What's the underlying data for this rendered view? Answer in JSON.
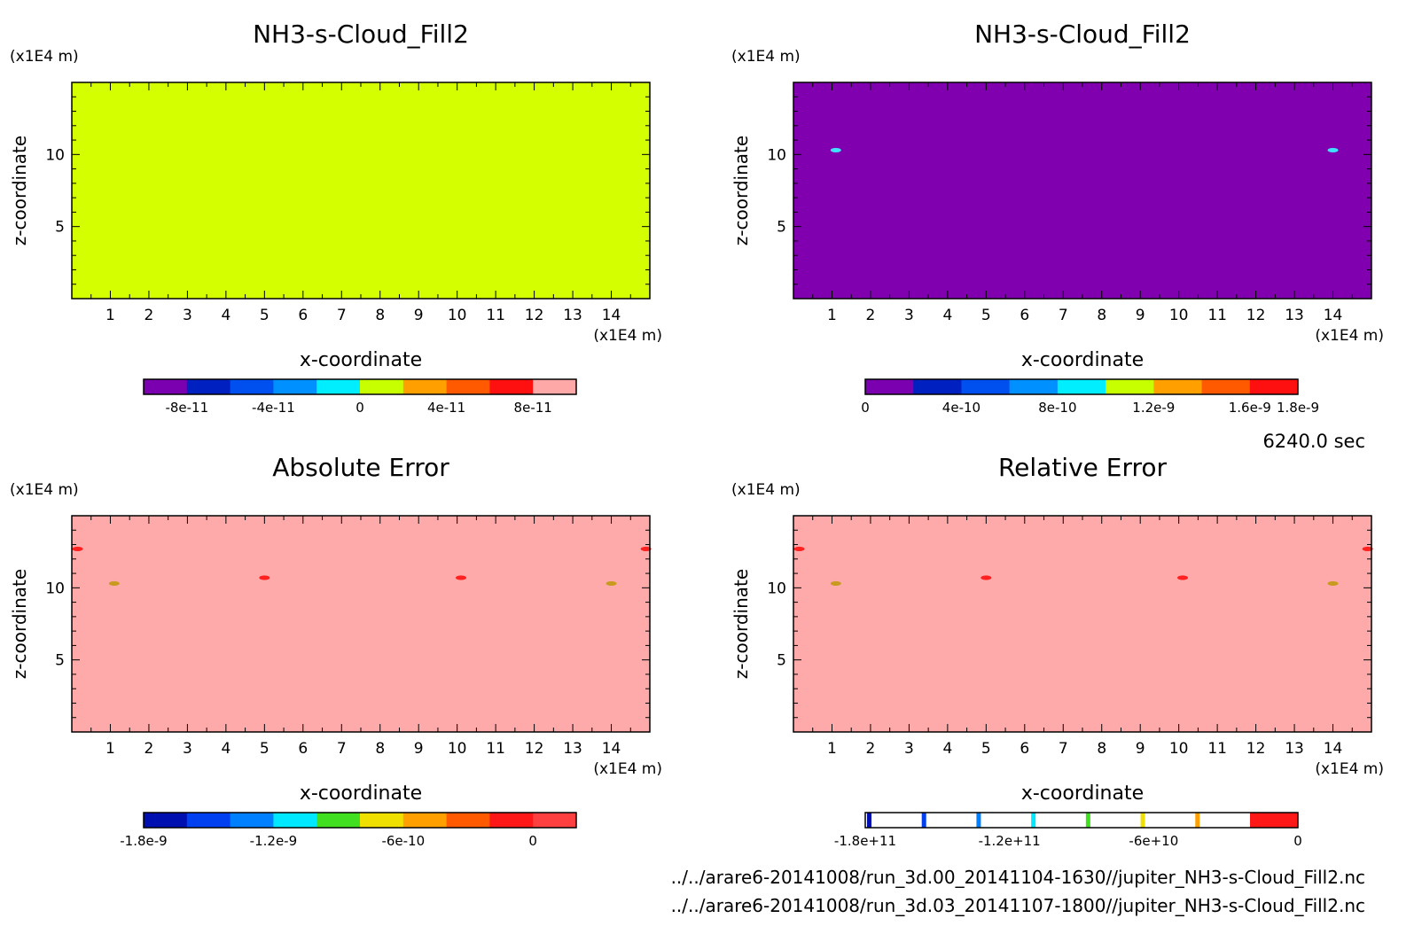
{
  "time_label": "6240.0 sec",
  "file_paths": [
    "../../arare6-20141008/run_3d.00_20141104-1630//jupiter_NH3-s-Cloud_Fill2.nc",
    "../../arare6-20141008/run_3d.03_20141107-1800//jupiter_NH3-s-Cloud_Fill2.nc"
  ],
  "chart_data": [
    {
      "type": "heatmap",
      "title": "NH3-s-Cloud_Fill2",
      "xlabel": "x-coordinate",
      "ylabel": "z-coordinate",
      "x_unit": "(x1E4 m)",
      "z_unit": "(x1E4 m)",
      "xlim": [
        0,
        15
      ],
      "zlim": [
        0,
        15
      ],
      "x_ticks": [
        "1",
        "2",
        "3",
        "4",
        "5",
        "6",
        "7",
        "8",
        "9",
        "10",
        "11",
        "12",
        "13",
        "14"
      ],
      "z_ticks": [
        "5",
        "10"
      ],
      "field_color": "#d4ff00",
      "features": [],
      "colorbar": {
        "colors": [
          "#7b00b0",
          "#0020c0",
          "#0050f0",
          "#0090ff",
          "#00eeff",
          "#c8ff00",
          "#ffa000",
          "#ff5a00",
          "#ff1010",
          "#ffa8a8"
        ],
        "labels": [
          "-8e-11",
          "-4e-11",
          "0",
          "4e-11",
          "8e-11"
        ],
        "label_positions": [
          1,
          3,
          5,
          7,
          9
        ],
        "style": "filled"
      }
    },
    {
      "type": "heatmap",
      "title": "NH3-s-Cloud_Fill2",
      "xlabel": "x-coordinate",
      "ylabel": "z-coordinate",
      "x_unit": "(x1E4 m)",
      "z_unit": "(x1E4 m)",
      "xlim": [
        0,
        15
      ],
      "zlim": [
        0,
        15
      ],
      "x_ticks": [
        "1",
        "2",
        "3",
        "4",
        "5",
        "6",
        "7",
        "8",
        "9",
        "10",
        "11",
        "12",
        "13",
        "14"
      ],
      "z_ticks": [
        "5",
        "10"
      ],
      "field_color": "#8000b0",
      "features": [
        {
          "x": 1.1,
          "z": 10.3,
          "color": "#40e0ff"
        },
        {
          "x": 14.0,
          "z": 10.3,
          "color": "#40e0ff"
        }
      ],
      "colorbar": {
        "colors": [
          "#7b00b0",
          "#0020c0",
          "#0050f0",
          "#0090ff",
          "#00eeff",
          "#c8ff00",
          "#ffa000",
          "#ff5a00",
          "#ff1010"
        ],
        "labels": [
          "0",
          "4e-10",
          "8e-10",
          "1.2e-9",
          "1.6e-9",
          "1.8e-9"
        ],
        "label_positions": [
          0,
          2,
          4,
          6,
          8,
          9
        ],
        "style": "filled"
      }
    },
    {
      "type": "heatmap",
      "title": "Absolute Error",
      "xlabel": "x-coordinate",
      "ylabel": "z-coordinate",
      "x_unit": "(x1E4 m)",
      "z_unit": "(x1E4 m)",
      "xlim": [
        0,
        15
      ],
      "zlim": [
        0,
        15
      ],
      "x_ticks": [
        "1",
        "2",
        "3",
        "4",
        "5",
        "6",
        "7",
        "8",
        "9",
        "10",
        "11",
        "12",
        "13",
        "14"
      ],
      "z_ticks": [
        "5",
        "10"
      ],
      "field_color": "#ffaaaa",
      "features": [
        {
          "x": 0.15,
          "z": 12.7,
          "color": "#ff2020"
        },
        {
          "x": 14.9,
          "z": 12.7,
          "color": "#ff2020"
        },
        {
          "x": 1.1,
          "z": 10.3,
          "color": "#c89a20"
        },
        {
          "x": 14.0,
          "z": 10.3,
          "color": "#c89a20"
        },
        {
          "x": 5.0,
          "z": 10.7,
          "color": "#ff2020"
        },
        {
          "x": 10.1,
          "z": 10.7,
          "color": "#ff2020"
        }
      ],
      "colorbar": {
        "colors": [
          "#0010b0",
          "#0040f0",
          "#0080ff",
          "#00e8ff",
          "#40e020",
          "#f0e000",
          "#ffa000",
          "#ff5a00",
          "#ff1818",
          "#ff4040"
        ],
        "labels": [
          "-1.8e-9",
          "-1.2e-9",
          "-6e-10",
          "0"
        ],
        "label_positions": [
          0,
          3,
          6,
          9
        ],
        "style": "filled"
      }
    },
    {
      "type": "heatmap",
      "title": "Relative Error",
      "xlabel": "x-coordinate",
      "ylabel": "z-coordinate",
      "x_unit": "(x1E4 m)",
      "z_unit": "(x1E4 m)",
      "xlim": [
        0,
        15
      ],
      "zlim": [
        0,
        15
      ],
      "x_ticks": [
        "1",
        "2",
        "3",
        "4",
        "5",
        "6",
        "7",
        "8",
        "9",
        "10",
        "11",
        "12",
        "13",
        "14"
      ],
      "z_ticks": [
        "5",
        "10"
      ],
      "field_color": "#ffaaaa",
      "features": [
        {
          "x": 0.15,
          "z": 12.7,
          "color": "#ff2020"
        },
        {
          "x": 14.9,
          "z": 12.7,
          "color": "#ff2020"
        },
        {
          "x": 1.1,
          "z": 10.3,
          "color": "#c89a20"
        },
        {
          "x": 14.0,
          "z": 10.3,
          "color": "#c89a20"
        },
        {
          "x": 5.0,
          "z": 10.7,
          "color": "#ff2020"
        },
        {
          "x": 10.1,
          "z": 10.7,
          "color": "#ff2020"
        }
      ],
      "colorbar": {
        "colors": [
          "#0010b0",
          "#0040f0",
          "#0080ff",
          "#00e8ff",
          "#40e020",
          "#f0e000",
          "#ffa000",
          "#ff5a00",
          "#ff1818"
        ],
        "labels": [
          "-1.8e+11",
          "-1.2e+11",
          "-6e+10",
          "0"
        ],
        "label_positions": [
          0,
          3,
          6,
          9
        ],
        "style": "lines"
      }
    }
  ]
}
